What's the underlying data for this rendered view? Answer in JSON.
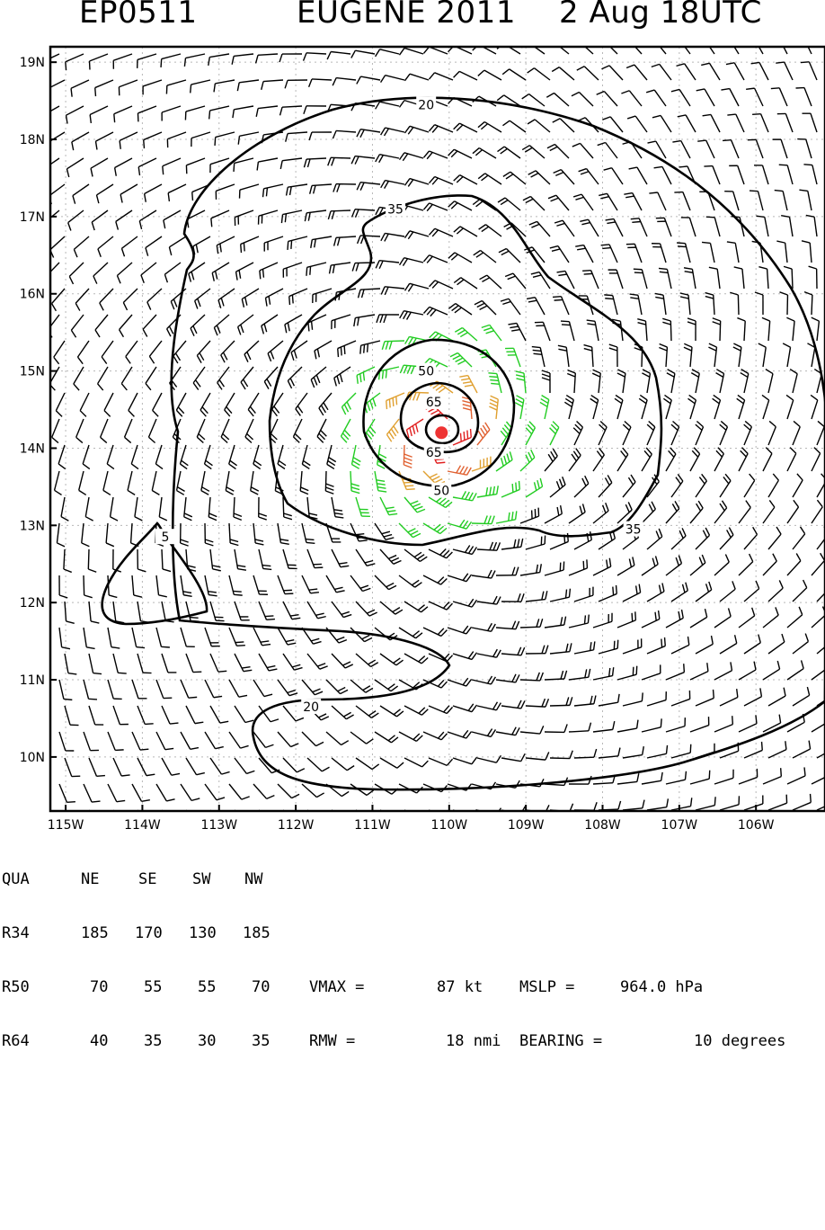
{
  "header": {
    "storm_id": "EP0511",
    "storm_name_year": "EUGENE 2011",
    "valid_time": "2 Aug 18UTC"
  },
  "map": {
    "lon_range": [
      -115.2,
      -105.1
    ],
    "lat_range": [
      9.3,
      19.2
    ],
    "lat_ticks": [
      {
        "lat": 19,
        "label": "19N"
      },
      {
        "lat": 18,
        "label": "18N"
      },
      {
        "lat": 17,
        "label": "17N"
      },
      {
        "lat": 16,
        "label": "16N"
      },
      {
        "lat": 15,
        "label": "15N"
      },
      {
        "lat": 14,
        "label": "14N"
      },
      {
        "lat": 13,
        "label": "13N"
      },
      {
        "lat": 12,
        "label": "12N"
      },
      {
        "lat": 11,
        "label": "11N"
      },
      {
        "lat": 10,
        "label": "10N"
      }
    ],
    "lon_ticks": [
      {
        "lon": -115,
        "label": "115W"
      },
      {
        "lon": -114,
        "label": "114W"
      },
      {
        "lon": -113,
        "label": "113W"
      },
      {
        "lon": -112,
        "label": "112W"
      },
      {
        "lon": -111,
        "label": "111W"
      },
      {
        "lon": -110,
        "label": "110W"
      },
      {
        "lon": -109,
        "label": "109W"
      },
      {
        "lon": -108,
        "label": "108W"
      },
      {
        "lon": -107,
        "label": "107W"
      },
      {
        "lon": -106,
        "label": "106W"
      }
    ],
    "storm_center": {
      "lon": -110.1,
      "lat": 14.2
    },
    "contour_labels": [
      {
        "text": "20",
        "lon": -110.3,
        "lat": 18.45
      },
      {
        "text": "35",
        "lon": -110.7,
        "lat": 17.1
      },
      {
        "text": "50",
        "lon": -110.3,
        "lat": 15.0
      },
      {
        "text": "65",
        "lon": -110.2,
        "lat": 14.6
      },
      {
        "text": "65",
        "lon": -110.2,
        "lat": 13.95
      },
      {
        "text": "50",
        "lon": -110.1,
        "lat": 13.45
      },
      {
        "text": "35",
        "lon": -107.6,
        "lat": 12.95
      },
      {
        "text": "5",
        "lon": -113.7,
        "lat": 12.85
      },
      {
        "text": "20",
        "lon": -111.8,
        "lat": 10.65
      }
    ],
    "wind_colors": {
      "calm": "#000000",
      "ts": "#22cc22",
      "strong": "#e0a030",
      "hurr": "#e06030",
      "core": "#e02020"
    },
    "thresholds_kt": [
      34,
      50,
      64,
      80
    ]
  },
  "table": {
    "header": [
      "QUA",
      "NE",
      "SE",
      "SW",
      "NW"
    ],
    "rows": [
      {
        "label": "R34",
        "values": [
          "185",
          "170",
          "130",
          "185"
        ]
      },
      {
        "label": "R50",
        "values": [
          "70",
          "55",
          "55",
          "70"
        ]
      },
      {
        "label": "R64",
        "values": [
          "40",
          "35",
          "30",
          "35"
        ]
      }
    ],
    "vmax_label": "VMAX =",
    "vmax_value": "87 kt",
    "mslp_label": "MSLP =",
    "mslp_value": "964.0 hPa",
    "rmw_label": "RMW =",
    "rmw_value": "18 nmi",
    "bearing_label": "BEARING =",
    "bearing_value": "10 degrees"
  }
}
